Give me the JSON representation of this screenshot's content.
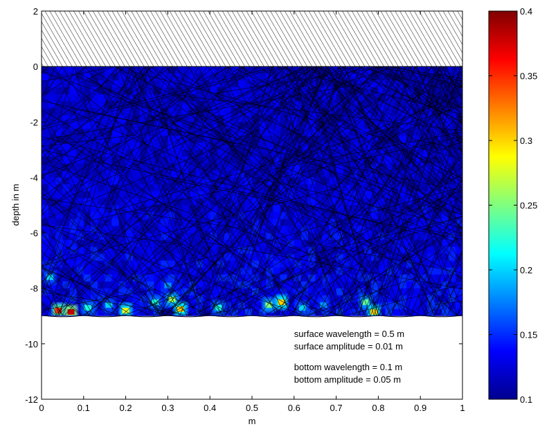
{
  "chart_data": {
    "type": "heatmap",
    "title": "",
    "xlabel": "m",
    "ylabel": "depth in m",
    "xlim": [
      0,
      1
    ],
    "ylim": [
      -12,
      2
    ],
    "x_ticks": [
      0,
      0.1,
      0.2,
      0.3,
      0.4,
      0.5,
      0.6,
      0.7,
      0.8,
      0.9,
      1
    ],
    "x_tick_labels": [
      "0",
      "0.1",
      "0.2",
      "0.3",
      "0.4",
      "0.5",
      "0.6",
      "0.7",
      "0.8",
      "0.9",
      "1"
    ],
    "y_ticks": [
      2,
      0,
      -2,
      -4,
      -6,
      -8,
      -10,
      -12
    ],
    "y_tick_labels": [
      "2",
      "0",
      "-2",
      "-4",
      "-6",
      "-8",
      "-10",
      "-12"
    ],
    "surface_depth": 0,
    "bottom_depth": -9,
    "air_region": [
      0,
      2
    ],
    "colormap": "jet",
    "colorbar": {
      "range": [
        0.1,
        0.4
      ],
      "ticks": [
        0.4,
        0.35,
        0.3,
        0.25,
        0.2,
        0.15,
        0.1
      ],
      "tick_labels": [
        "0.4",
        "0.35",
        "0.3",
        "0.25",
        "0.2",
        "0.15",
        "0.1"
      ]
    },
    "background_value": 0.12,
    "hotspots": [
      {
        "x": 0.04,
        "y": -8.8,
        "value": 0.35
      },
      {
        "x": 0.07,
        "y": -8.85,
        "value": 0.38
      },
      {
        "x": 0.11,
        "y": -8.7,
        "value": 0.22
      },
      {
        "x": 0.16,
        "y": -8.6,
        "value": 0.2
      },
      {
        "x": 0.2,
        "y": -8.8,
        "value": 0.28
      },
      {
        "x": 0.27,
        "y": -8.5,
        "value": 0.22
      },
      {
        "x": 0.31,
        "y": -8.4,
        "value": 0.26
      },
      {
        "x": 0.33,
        "y": -8.75,
        "value": 0.3
      },
      {
        "x": 0.42,
        "y": -8.7,
        "value": 0.22
      },
      {
        "x": 0.54,
        "y": -8.6,
        "value": 0.25
      },
      {
        "x": 0.57,
        "y": -8.5,
        "value": 0.3
      },
      {
        "x": 0.62,
        "y": -8.7,
        "value": 0.2
      },
      {
        "x": 0.67,
        "y": -8.6,
        "value": 0.18
      },
      {
        "x": 0.77,
        "y": -8.5,
        "value": 0.24
      },
      {
        "x": 0.79,
        "y": -8.85,
        "value": 0.3
      },
      {
        "x": 0.02,
        "y": -7.6,
        "value": 0.2
      },
      {
        "x": 0.3,
        "y": -7.9,
        "value": 0.18
      }
    ],
    "annotations": [
      {
        "text": "surface wavelength = 0.5 m",
        "x": 0.6,
        "y": -9.75
      },
      {
        "text": "surface amplitude = 0.01 m",
        "x": 0.6,
        "y": -10.2
      },
      {
        "text": "bottom wavelength = 0.1 m",
        "x": 0.6,
        "y": -10.95
      },
      {
        "text": "bottom amplitude = 0.05 m",
        "x": 0.6,
        "y": -11.4
      }
    ],
    "bottom_wavelength": 0.1,
    "bottom_amplitude": 0.05,
    "ray_count": 220
  }
}
